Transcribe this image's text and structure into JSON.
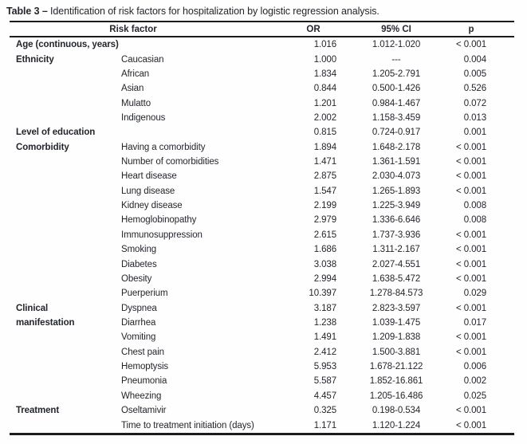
{
  "title": {
    "label": "Table 3 –",
    "text": " Identification of risk factors for hospitalization by logistic regression analysis."
  },
  "table": {
    "headers": {
      "risk_factor": "Risk factor",
      "or": "OR",
      "ci": "95% CI",
      "p": "p"
    },
    "rows": [
      {
        "category": "Age (continuous, years)",
        "factor": "",
        "or": "1.016",
        "ci": "1.012-1.020",
        "p": "< 0.001"
      },
      {
        "category": "Ethnicity",
        "factor": "Caucasian",
        "or": "1.000",
        "ci": "---",
        "p": "0.004"
      },
      {
        "category": "",
        "factor": "African",
        "or": "1.834",
        "ci": "1.205-2.791",
        "p": "0.005"
      },
      {
        "category": "",
        "factor": "Asian",
        "or": "0.844",
        "ci": "0.500-1.426",
        "p": "0.526"
      },
      {
        "category": "",
        "factor": "Mulatto",
        "or": "1.201",
        "ci": "0.984-1.467",
        "p": "0.072"
      },
      {
        "category": "",
        "factor": "Indigenous",
        "or": "2.002",
        "ci": "1.158-3.459",
        "p": "0.013"
      },
      {
        "category": "Level of education",
        "factor": "",
        "or": "0.815",
        "ci": "0.724-0.917",
        "p": "0.001"
      },
      {
        "category": "Comorbidity",
        "factor": "Having a comorbidity",
        "or": "1.894",
        "ci": "1.648-2.178",
        "p": "< 0.001"
      },
      {
        "category": "",
        "factor": "Number of comorbidities",
        "or": "1.471",
        "ci": "1.361-1.591",
        "p": "< 0.001"
      },
      {
        "category": "",
        "factor": "Heart disease",
        "or": "2.875",
        "ci": "2.030-4.073",
        "p": "< 0.001"
      },
      {
        "category": "",
        "factor": "Lung disease",
        "or": "1.547",
        "ci": "1.265-1.893",
        "p": "< 0.001"
      },
      {
        "category": "",
        "factor": "Kidney disease",
        "or": "2.199",
        "ci": "1.225-3.949",
        "p": "0.008"
      },
      {
        "category": "",
        "factor": "Hemoglobinopathy",
        "or": "2.979",
        "ci": "1.336-6.646",
        "p": "0.008"
      },
      {
        "category": "",
        "factor": "Immunosuppression",
        "or": "2.615",
        "ci": "1.737-3.936",
        "p": "< 0.001"
      },
      {
        "category": "",
        "factor": "Smoking",
        "or": "1.686",
        "ci": "1.311-2.167",
        "p": "< 0.001"
      },
      {
        "category": "",
        "factor": "Diabetes",
        "or": "3.038",
        "ci": "2.027-4.551",
        "p": "< 0.001"
      },
      {
        "category": "",
        "factor": "Obesity",
        "or": "2.994",
        "ci": "1.638-5.472",
        "p": "< 0.001"
      },
      {
        "category": "",
        "factor": "Puerperium",
        "or": "10.397",
        "ci": "1.278-84.573",
        "p": "0.029"
      },
      {
        "category": "Clinical",
        "factor": "Dyspnea",
        "or": "3.187",
        "ci": "2.823-3.597",
        "p": "< 0.001"
      },
      {
        "category": "manifestation",
        "factor": "Diarrhea",
        "or": "1.238",
        "ci": "1.039-1.475",
        "p": "0.017"
      },
      {
        "category": "",
        "factor": "Vomiting",
        "or": "1.491",
        "ci": "1.209-1.838",
        "p": "< 0.001"
      },
      {
        "category": "",
        "factor": "Chest pain",
        "or": "2.412",
        "ci": "1.500-3.881",
        "p": "< 0.001"
      },
      {
        "category": "",
        "factor": "Hemoptysis",
        "or": "5.953",
        "ci": "1.678-21.122",
        "p": "0.006"
      },
      {
        "category": "",
        "factor": "Pneumonia",
        "or": "5.587",
        "ci": "1.852-16.861",
        "p": "0.002"
      },
      {
        "category": "",
        "factor": "Wheezing",
        "or": "4.457",
        "ci": "1.205-16.486",
        "p": "0.025"
      },
      {
        "category": "Treatment",
        "factor": "Oseltamivir",
        "or": "0.325",
        "ci": "0.198-0.534",
        "p": "< 0.001"
      },
      {
        "category": "",
        "factor": "Time to treatment initiation (days)",
        "or": "1.171",
        "ci": "1.120-1.224",
        "p": "< 0.001"
      }
    ]
  },
  "colors": {
    "text": "#23262c",
    "rule": "#1c1c1c",
    "background": "#fefefe"
  }
}
